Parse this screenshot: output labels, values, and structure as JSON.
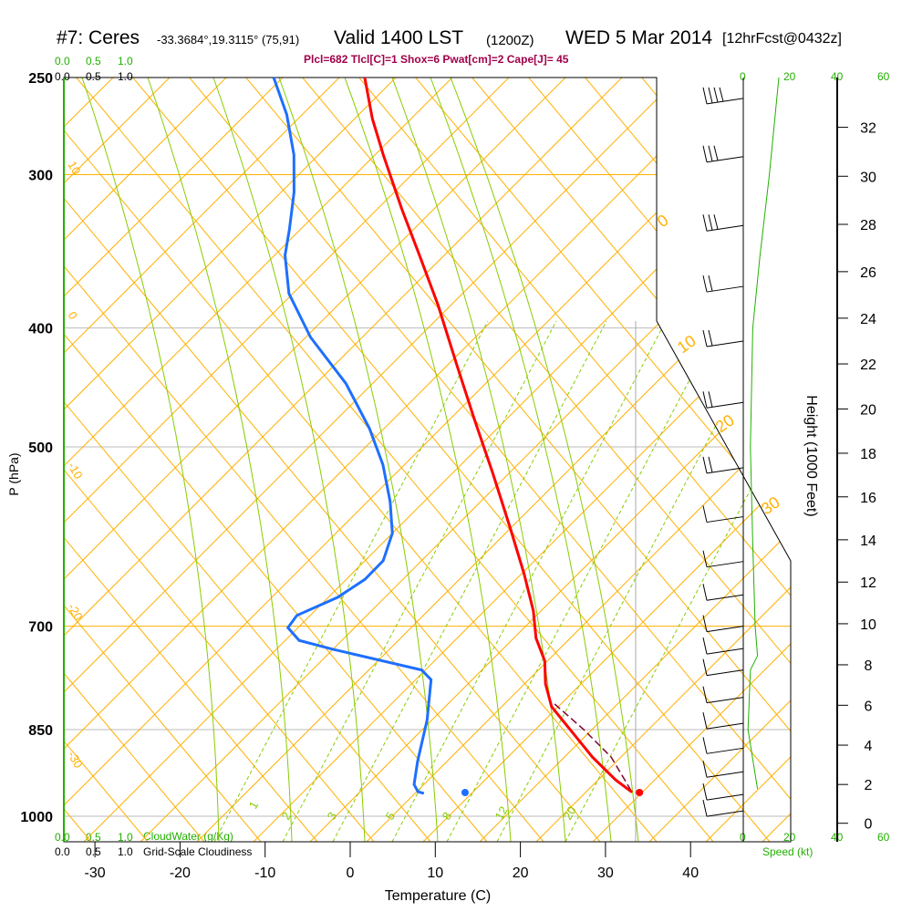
{
  "title": {
    "station": "#7: Ceres",
    "coords": "-33.3684°,19.3115° (75,91)",
    "valid": "Valid 1400 LST",
    "zulu": "(1200Z)",
    "date": "WED 5 Mar 2014",
    "forecast": "[12hrFcst@0432z]"
  },
  "indices": "Plcl=682 Tlcl[C]=1 Shox=6 Pwat[cm]=2 Cape[J]= 45",
  "cloud_scales": {
    "water_ticks": [
      "0.0",
      "0.5",
      "1.0"
    ],
    "water_label": "CloudWater (g/Kg)",
    "cloudiness_ticks": [
      "0.0",
      "0.5",
      "1.0"
    ],
    "cloudiness_label": "Grid-Scale Cloudiness"
  },
  "speed_axis": {
    "ticks": [
      "0",
      "20",
      "40",
      "60"
    ],
    "label": "Speed (kt)"
  },
  "colors": {
    "temp": "#ff0000",
    "dewpoint": "#1e6fff",
    "isotherm": "#ffb000",
    "moist": "#88cc00",
    "green": "#22b000",
    "parcel": "#800030"
  },
  "chart_data": {
    "type": "skew-t",
    "xlabel": "Temperature (C)",
    "ylabel": "P (hPa)",
    "y2label": "Height (1000 Feet)",
    "x_ticks": [
      -30,
      -20,
      -10,
      0,
      10,
      20,
      30,
      40
    ],
    "p_ticks": [
      250,
      300,
      400,
      500,
      700,
      850,
      1000
    ],
    "height_ticks": [
      0,
      2,
      4,
      6,
      8,
      10,
      12,
      14,
      16,
      18,
      20,
      22,
      24,
      26,
      28,
      30,
      32
    ],
    "mixing_ratio_labels": [
      "1",
      "2",
      "3",
      "5",
      "8",
      "12",
      "20"
    ],
    "theta_labels_left": [
      "10",
      "0",
      "-10",
      "-20",
      "-30"
    ],
    "theta_labels_right": [
      "0",
      "10",
      "20",
      "30"
    ],
    "temperature": [
      [
        250,
        -45.0
      ],
      [
        270,
        -41.6
      ],
      [
        289,
        -38.1
      ],
      [
        320,
        -32.6
      ],
      [
        349,
        -27.7
      ],
      [
        383,
        -22.5
      ],
      [
        428,
        -16.7
      ],
      [
        475,
        -11.2
      ],
      [
        526,
        -5.7
      ],
      [
        583,
        -0.3
      ],
      [
        635,
        4.1
      ],
      [
        680,
        7.4
      ],
      [
        716,
        9.4
      ],
      [
        747,
        11.8
      ],
      [
        780,
        13.3
      ],
      [
        814,
        15.4
      ],
      [
        850,
        19.0
      ],
      [
        895,
        23.3
      ],
      [
        934,
        27.4
      ],
      [
        956,
        30.1
      ]
    ],
    "dewpoint": [
      [
        250,
        -55.7
      ],
      [
        268,
        -51.9
      ],
      [
        289,
        -48.6
      ],
      [
        310,
        -46.3
      ],
      [
        332,
        -44.6
      ],
      [
        349,
        -43.5
      ],
      [
        375,
        -40.7
      ],
      [
        407,
        -35.5
      ],
      [
        444,
        -28.5
      ],
      [
        483,
        -23.0
      ],
      [
        517,
        -19.2
      ],
      [
        554,
        -16.1
      ],
      [
        588,
        -13.9
      ],
      [
        619,
        -13.3
      ],
      [
        641,
        -14.3
      ],
      [
        663,
        -16.4
      ],
      [
        686,
        -20.1
      ],
      [
        702,
        -20.4
      ],
      [
        719,
        -18.3
      ],
      [
        731,
        -13.8
      ],
      [
        760,
        -2.1
      ],
      [
        774,
        -0.4
      ],
      [
        835,
        1.6
      ],
      [
        902,
        3.0
      ],
      [
        942,
        4.0
      ],
      [
        955,
        4.9
      ],
      [
        958,
        5.7
      ]
    ],
    "parcel": [
      [
        810,
        15.6
      ],
      [
        850,
        20.6
      ],
      [
        895,
        25.5
      ],
      [
        956,
        30.1
      ]
    ],
    "surface": {
      "temperature": 34,
      "dewpoint": 13.5
    },
    "wind_speed": [
      [
        250,
        15
      ],
      [
        300,
        11
      ],
      [
        350,
        7
      ],
      [
        400,
        4
      ],
      [
        500,
        3
      ],
      [
        600,
        4
      ],
      [
        700,
        5
      ],
      [
        740,
        6
      ],
      [
        760,
        3
      ],
      [
        850,
        2
      ],
      [
        950,
        6
      ]
    ],
    "wind_barbs": [
      [
        260,
        35
      ],
      [
        290,
        30
      ],
      [
        330,
        25
      ],
      [
        370,
        22
      ],
      [
        410,
        20
      ],
      [
        460,
        18
      ],
      [
        520,
        15
      ],
      [
        570,
        14
      ],
      [
        620,
        12
      ],
      [
        660,
        10
      ],
      [
        700,
        10
      ],
      [
        730,
        8
      ],
      [
        760,
        6
      ],
      [
        800,
        8
      ],
      [
        840,
        12
      ],
      [
        880,
        14
      ],
      [
        920,
        12
      ],
      [
        960,
        10
      ],
      [
        990,
        8
      ]
    ]
  }
}
